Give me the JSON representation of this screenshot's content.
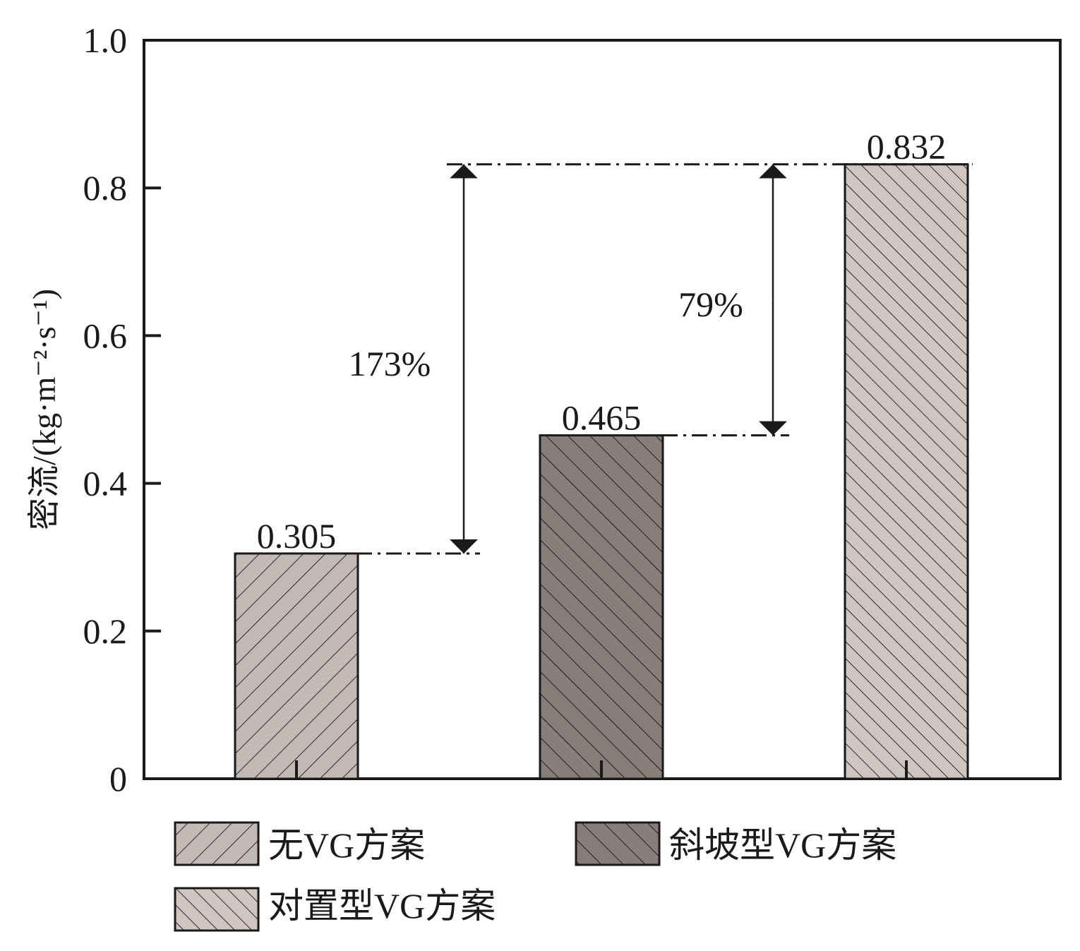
{
  "chart_data": {
    "type": "bar",
    "ylabel": "密流/(kg·m⁻²·s⁻¹)",
    "ylim": [
      0,
      1.0
    ],
    "yticks": [
      "0",
      "0.2",
      "0.4",
      "0.6",
      "0.8",
      "1.0"
    ],
    "yticks_values": [
      0,
      0.2,
      0.4,
      0.6,
      0.8,
      1.0
    ],
    "categories": [
      "无VG方案",
      "斜坡型VG方案",
      "对置型VG方案"
    ],
    "values": [
      0.305,
      0.465,
      0.832
    ],
    "value_labels": [
      "0.305",
      "0.465",
      "0.832"
    ],
    "colors": [
      "#c3bab6",
      "#877d79",
      "#cfc6c1"
    ],
    "annotations": [
      {
        "from": 0.305,
        "to": 0.832,
        "text": "173%"
      },
      {
        "from": 0.465,
        "to": 0.832,
        "text": "79%"
      }
    ],
    "legend": {
      "items": [
        "无VG方案",
        "斜坡型VG方案",
        "对置型VG方案"
      ]
    },
    "grid": false
  }
}
